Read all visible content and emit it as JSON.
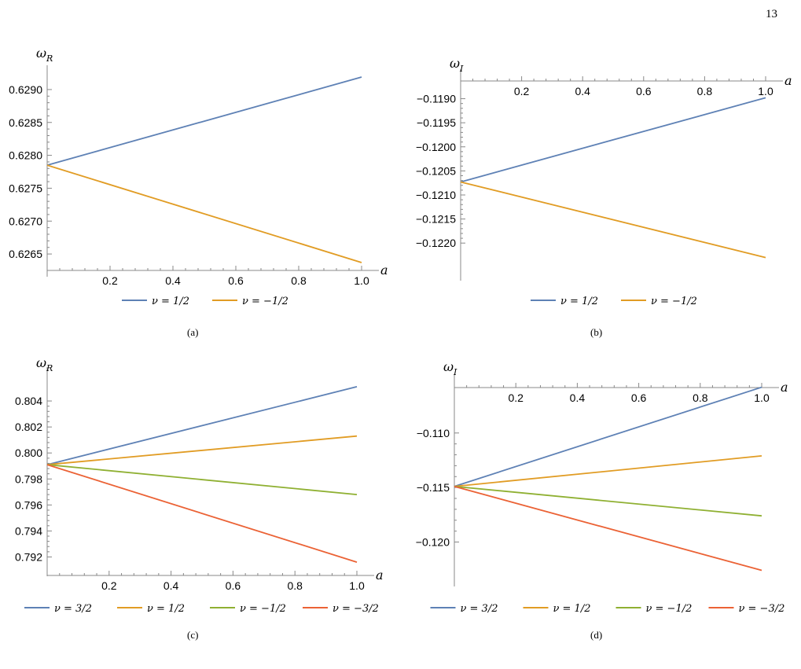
{
  "page_number": "13",
  "colors": {
    "blue": "#5E81B5",
    "orange": "#E19C24",
    "green": "#8FB032",
    "red": "#EB6235"
  },
  "chart_data": [
    {
      "panel": "a",
      "type": "line",
      "caption": "(a)",
      "xlabel": "a",
      "ylabel": "ω_R",
      "xlim": [
        0,
        1
      ],
      "ylim": [
        0.62625,
        0.62925
      ],
      "xticks": [
        0.2,
        0.4,
        0.6,
        0.8,
        1.0
      ],
      "xtick_labels": [
        "0.2",
        "0.4",
        "0.6",
        "0.8",
        "1.0"
      ],
      "yticks": [
        0.6265,
        0.627,
        0.6275,
        0.628,
        0.6285,
        0.629
      ],
      "ytick_labels": [
        "0.6265",
        "0.6270",
        "0.6275",
        "0.6280",
        "0.6285",
        "0.6290"
      ],
      "legend": "bottom",
      "series": [
        {
          "name": "ν = 1/2",
          "color": "#5E81B5",
          "x": [
            0,
            1
          ],
          "y": [
            0.62785,
            0.62919
          ]
        },
        {
          "name": "ν = −1/2",
          "color": "#E19C24",
          "x": [
            0,
            1
          ],
          "y": [
            0.62785,
            0.62637
          ]
        }
      ]
    },
    {
      "panel": "b",
      "type": "line",
      "caption": "(b)",
      "xlabel": "a",
      "ylabel": "ω_I",
      "xlim": [
        0,
        1
      ],
      "ylim": [
        -0.12265,
        -0.11855
      ],
      "xticks": [
        0.2,
        0.4,
        0.6,
        0.8,
        1.0
      ],
      "xtick_labels": [
        "0.2",
        "0.4",
        "0.6",
        "0.8",
        "1.0"
      ],
      "yticks": [
        -0.119,
        -0.1195,
        -0.12,
        -0.1205,
        -0.121,
        -0.1215,
        -0.122
      ],
      "ytick_labels": [
        "−0.1190",
        "−0.1195",
        "−0.1200",
        "−0.1205",
        "−0.1210",
        "−0.1215",
        "−0.1220"
      ],
      "legend": "bottom",
      "series": [
        {
          "name": "ν = 1/2",
          "color": "#5E81B5",
          "x": [
            0,
            1
          ],
          "y": [
            -0.12073,
            -0.11898
          ]
        },
        {
          "name": "ν = −1/2",
          "color": "#E19C24",
          "x": [
            0,
            1
          ],
          "y": [
            -0.12073,
            -0.1223
          ]
        }
      ]
    },
    {
      "panel": "c",
      "type": "line",
      "caption": "(c)",
      "xlabel": "a",
      "ylabel": "ω_R",
      "xlim": [
        0,
        1
      ],
      "ylim": [
        0.791,
        0.806
      ],
      "xticks": [
        0.2,
        0.4,
        0.6,
        0.8,
        1.0
      ],
      "xtick_labels": [
        "0.2",
        "0.4",
        "0.6",
        "0.8",
        "1.0"
      ],
      "yticks": [
        0.792,
        0.794,
        0.796,
        0.798,
        0.8,
        0.802,
        0.804
      ],
      "ytick_labels": [
        "0.792",
        "0.794",
        "0.796",
        "0.798",
        "0.800",
        "0.802",
        "0.804"
      ],
      "legend": "bottom",
      "series": [
        {
          "name": "ν = 3/2",
          "color": "#5E81B5",
          "x": [
            0,
            1
          ],
          "y": [
            0.7991,
            0.8051
          ]
        },
        {
          "name": "ν = 1/2",
          "color": "#E19C24",
          "x": [
            0,
            1
          ],
          "y": [
            0.7991,
            0.8013
          ]
        },
        {
          "name": "ν = −1/2",
          "color": "#8FB032",
          "x": [
            0,
            1
          ],
          "y": [
            0.7991,
            0.7968
          ]
        },
        {
          "name": "ν = −3/2",
          "color": "#EB6235",
          "x": [
            0,
            1
          ],
          "y": [
            0.7991,
            0.7916
          ]
        }
      ]
    },
    {
      "panel": "d",
      "type": "line",
      "caption": "(d)",
      "xlabel": "a",
      "ylabel": "ω_I",
      "xlim": [
        0,
        1
      ],
      "ylim": [
        -0.1235,
        -0.1054
      ],
      "xticks": [
        0.2,
        0.4,
        0.6,
        0.8,
        1.0
      ],
      "xtick_labels": [
        "0.2",
        "0.4",
        "0.6",
        "0.8",
        "1.0"
      ],
      "yticks": [
        -0.11,
        -0.115,
        -0.12
      ],
      "ytick_labels": [
        "−0.110",
        "−0.115",
        "−0.120"
      ],
      "legend": "bottom",
      "series": [
        {
          "name": "ν = 3/2",
          "color": "#5E81B5",
          "x": [
            0,
            1
          ],
          "y": [
            -0.1149,
            -0.1058
          ]
        },
        {
          "name": "ν = 1/2",
          "color": "#E19C24",
          "x": [
            0,
            1
          ],
          "y": [
            -0.1149,
            -0.1121
          ]
        },
        {
          "name": "ν = −1/2",
          "color": "#8FB032",
          "x": [
            0,
            1
          ],
          "y": [
            -0.1149,
            -0.1176
          ]
        },
        {
          "name": "ν = −3/2",
          "color": "#EB6235",
          "x": [
            0,
            1
          ],
          "y": [
            -0.1149,
            -0.1226
          ]
        }
      ]
    }
  ]
}
